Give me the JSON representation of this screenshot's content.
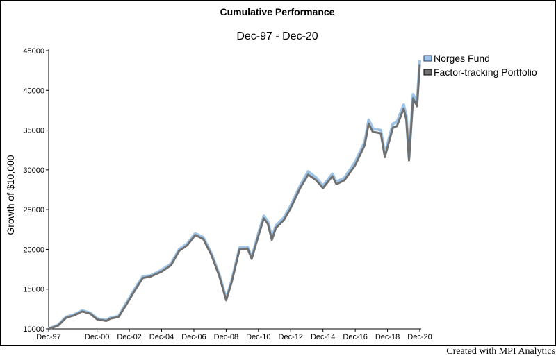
{
  "chart_data": {
    "type": "line",
    "title": "Cumulative Performance",
    "subtitle": "Dec-97 - Dec-20",
    "xlabel": "",
    "ylabel": "Growth of $10,000",
    "x_ticks": [
      "Dec-97",
      "Dec-00",
      "Dec-02",
      "Dec-04",
      "Dec-06",
      "Dec-08",
      "Dec-10",
      "Dec-12",
      "Dec-14",
      "Dec-16",
      "Dec-18",
      "Dec-20"
    ],
    "y_ticks": [
      "10000",
      "15000",
      "20000",
      "25000",
      "30000",
      "35000",
      "40000",
      "45000"
    ],
    "ylim": [
      10000,
      45000
    ],
    "xlim": [
      1997.917,
      2020.917
    ],
    "grid": false,
    "legend": "top-right",
    "colors": {
      "Norges Fund": "#9dc3e6",
      "Factor-tracking Portfolio": "#707070"
    },
    "x": [
      1997.917,
      1998.5,
      1999.0,
      1999.5,
      2000.0,
      2000.5,
      2000.917,
      2001.5,
      2001.75,
      2002.25,
      2002.75,
      2003.25,
      2003.75,
      2004.25,
      2004.917,
      2005.5,
      2006.0,
      2006.5,
      2007.0,
      2007.5,
      2008.0,
      2008.5,
      2008.917,
      2009.25,
      2009.75,
      2010.25,
      2010.5,
      2010.917,
      2011.25,
      2011.5,
      2011.75,
      2012.0,
      2012.5,
      2012.917,
      2013.5,
      2014.0,
      2014.5,
      2014.917,
      2015.5,
      2015.75,
      2016.25,
      2016.917,
      2017.5,
      2017.75,
      2018.0,
      2018.5,
      2018.75,
      2019.25,
      2019.5,
      2019.917,
      2020.08,
      2020.25,
      2020.5,
      2020.75,
      2020.917
    ],
    "series": [
      {
        "name": "Norges Fund",
        "values": [
          10000,
          10500,
          11500,
          11800,
          12300,
          12000,
          11300,
          11100,
          11400,
          11600,
          13300,
          15000,
          16600,
          16700,
          17400,
          18200,
          20000,
          20700,
          22000,
          21500,
          19500,
          16800,
          13800,
          16000,
          20200,
          20300,
          19000,
          22000,
          24200,
          23500,
          21500,
          23000,
          24000,
          25500,
          28000,
          29800,
          29000,
          28000,
          29500,
          28500,
          29000,
          31000,
          33500,
          36300,
          35200,
          35000,
          32000,
          35800,
          36000,
          38200,
          36800,
          31500,
          39500,
          38500,
          43800
        ]
      },
      {
        "name": "Factor-tracking Portfolio",
        "values": [
          10000,
          10400,
          11400,
          11700,
          12200,
          11900,
          11200,
          11000,
          11300,
          11500,
          13100,
          14800,
          16400,
          16600,
          17200,
          18000,
          19800,
          20500,
          21800,
          21300,
          19300,
          16600,
          13600,
          15800,
          20000,
          20100,
          18800,
          21700,
          23900,
          23200,
          21200,
          22700,
          23700,
          25200,
          27700,
          29400,
          28700,
          27700,
          29200,
          28200,
          28700,
          30600,
          33100,
          35800,
          34800,
          34600,
          31600,
          35300,
          35500,
          37700,
          36300,
          31200,
          39000,
          38000,
          43300
        ]
      }
    ]
  },
  "footer": {
    "credit": "Created with MPI Analytics"
  }
}
